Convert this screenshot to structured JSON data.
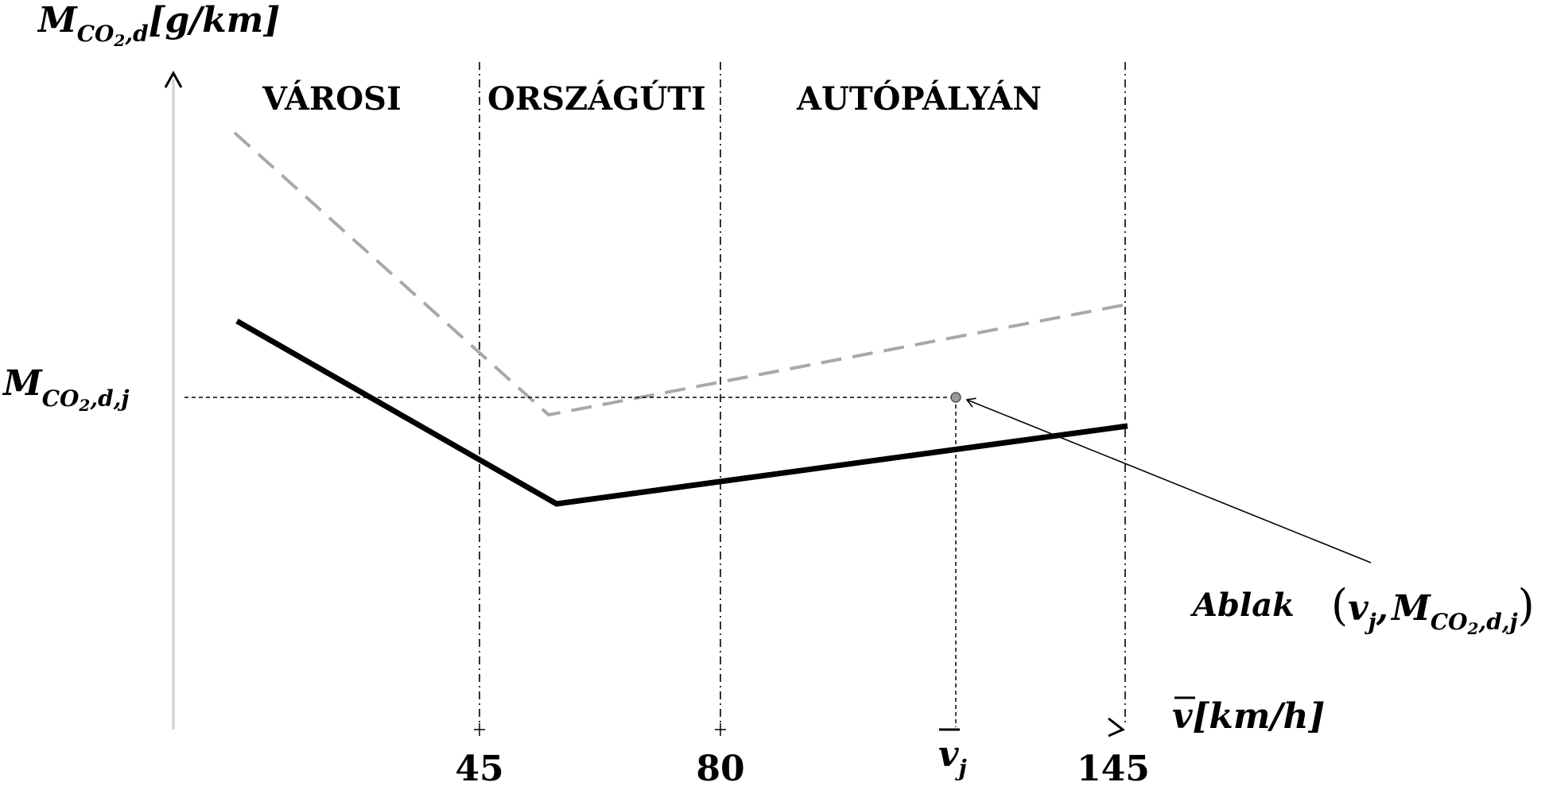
{
  "diagram": {
    "y_axis": {
      "label_main": "M",
      "label_sub": "CO",
      "label_sub2": "2",
      "label_sub3": ",d",
      "label_unit": "[g/km]"
    },
    "x_axis": {
      "label_main": "v",
      "label_unit": "[km/h]"
    },
    "regions": [
      "VÁROSI",
      "ORSZÁGÚTI",
      "AUTÓPÁLYÁN"
    ],
    "ticks": [
      "45",
      "80",
      "145"
    ],
    "tick_vj": {
      "main": "v",
      "sub": "j"
    },
    "level_label": {
      "main": "M",
      "sub": "CO",
      "sub2": "2",
      "sub3": ",d,j"
    },
    "window_label": {
      "word": "Ablak",
      "open": "(",
      "v": "v",
      "vsub": "j",
      "comma": ",",
      "m": "M",
      "msub": "CO",
      "msub2": "2",
      "msub3": ",d,j",
      "close": ")"
    },
    "colors": {
      "solid": "#000000",
      "dashed": "#a8a8a8",
      "axis": "#cfcfcf"
    }
  }
}
